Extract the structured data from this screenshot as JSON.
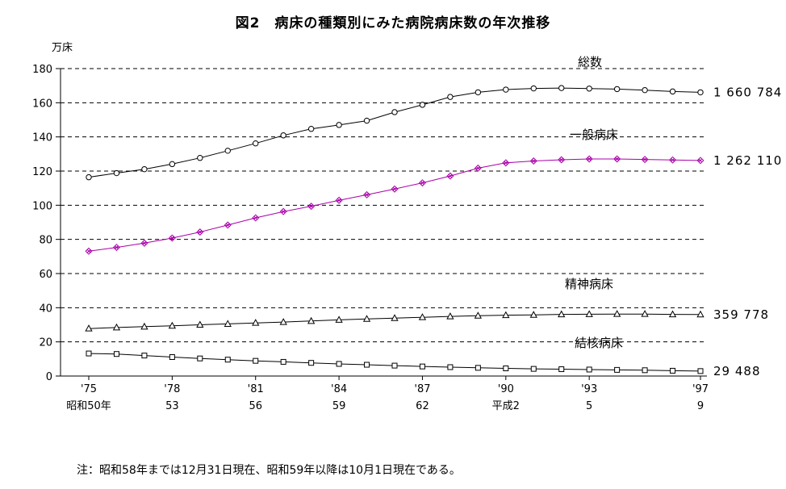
{
  "page": {
    "title": "図2　病床の種類別にみた病院病床数の年次推移",
    "y_axis_unit": "万床",
    "note": "注：昭和58年までは12月31日現在、昭和59年以降は10月1日現在である。"
  },
  "chart_data": {
    "type": "line",
    "title": "図2　病床の種類別にみた病院病床数の年次推移",
    "ylabel": "万床",
    "ylim": [
      0,
      180
    ],
    "y_ticks": [
      0,
      20,
      40,
      60,
      80,
      100,
      120,
      140,
      160,
      180
    ],
    "grid": "horizontal-dashed",
    "legend_position": "inline-labels",
    "x_years": [
      1975,
      1976,
      1977,
      1978,
      1979,
      1980,
      1981,
      1982,
      1983,
      1984,
      1985,
      1986,
      1987,
      1988,
      1989,
      1990,
      1991,
      1992,
      1993,
      1994,
      1995,
      1996,
      1997
    ],
    "x_ticks": [
      {
        "year": 1975,
        "label": "'75",
        "era": "昭和50年"
      },
      {
        "year": 1978,
        "label": "'78",
        "era": "53"
      },
      {
        "year": 1981,
        "label": "'81",
        "era": "56"
      },
      {
        "year": 1984,
        "label": "'84",
        "era": "59"
      },
      {
        "year": 1987,
        "label": "'87",
        "era": "62"
      },
      {
        "year": 1990,
        "label": "'90",
        "era": "平成2"
      },
      {
        "year": 1993,
        "label": "'93",
        "era": "5"
      },
      {
        "year": 1997,
        "label": "'97",
        "era": "9"
      }
    ],
    "series": [
      {
        "name": "総数",
        "marker": "circle",
        "color": "#000000",
        "end_value_label": "1 660 784",
        "values": [
          116.4,
          118.8,
          121.1,
          124.1,
          127.7,
          131.9,
          136.2,
          140.9,
          144.7,
          147.0,
          149.5,
          154.5,
          158.8,
          163.4,
          166.1,
          167.7,
          168.4,
          168.6,
          168.3,
          168.0,
          167.4,
          166.6,
          166.1
        ]
      },
      {
        "name": "一般病床",
        "marker": "diamond-x",
        "color": "#aa00aa",
        "end_value_label": "1 262 110",
        "values": [
          73.1,
          75.3,
          77.8,
          80.8,
          84.3,
          88.4,
          92.6,
          96.3,
          99.4,
          102.9,
          106.1,
          109.5,
          113.1,
          117.1,
          121.7,
          124.8,
          125.9,
          126.6,
          127.1,
          127.1,
          126.8,
          126.5,
          126.2
        ]
      },
      {
        "name": "精神病床",
        "marker": "triangle",
        "color": "#000000",
        "end_value_label": "359 778",
        "values": [
          27.8,
          28.4,
          28.9,
          29.4,
          30.0,
          30.5,
          31.1,
          31.6,
          32.2,
          32.9,
          33.4,
          33.9,
          34.4,
          34.9,
          35.3,
          35.6,
          35.8,
          36.1,
          36.2,
          36.3,
          36.3,
          36.1,
          36.0
        ]
      },
      {
        "name": "結核病床",
        "marker": "square",
        "color": "#000000",
        "end_value_label": "29 488",
        "values": [
          13.2,
          12.9,
          12.0,
          11.1,
          10.3,
          9.6,
          8.9,
          8.3,
          7.7,
          7.1,
          6.6,
          6.1,
          5.6,
          5.2,
          4.8,
          4.5,
          4.2,
          4.0,
          3.8,
          3.6,
          3.4,
          3.1,
          2.9
        ]
      }
    ]
  }
}
